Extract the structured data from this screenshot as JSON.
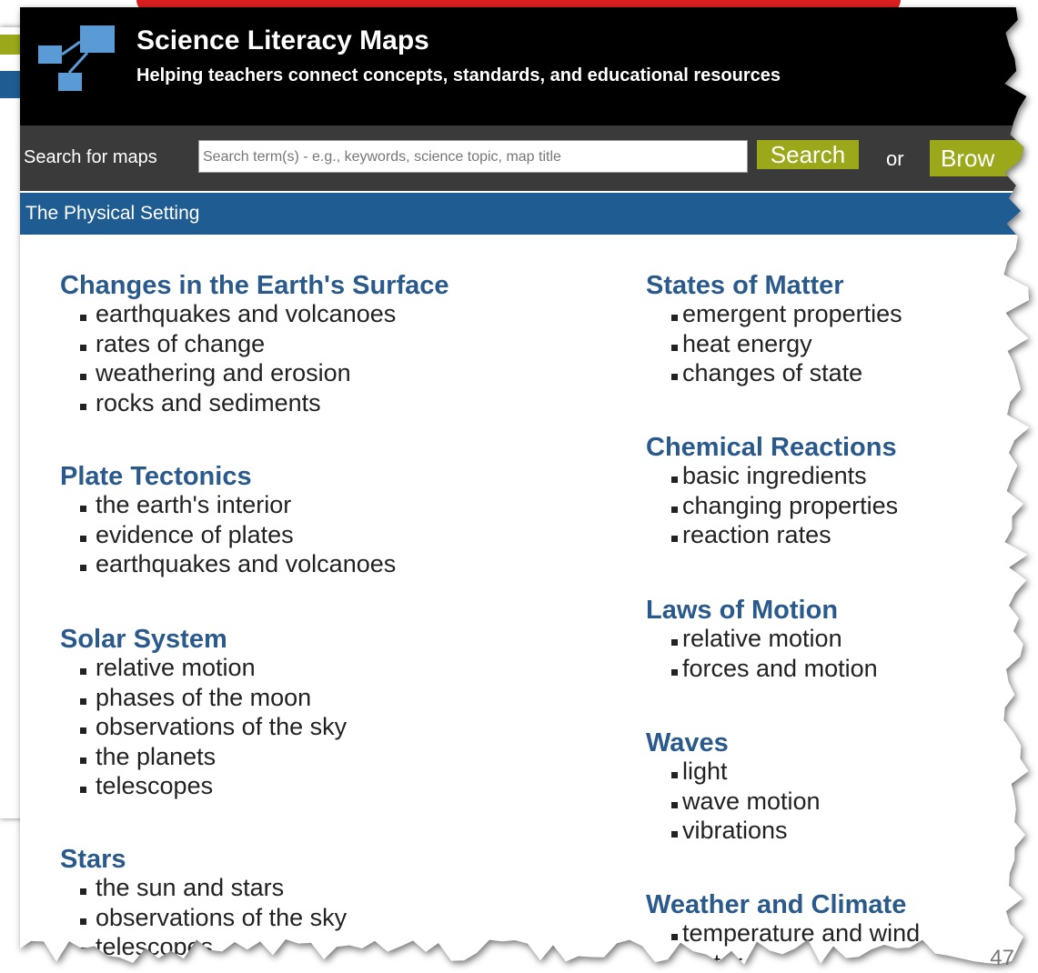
{
  "header": {
    "title": "Science Literacy Maps",
    "subtitle": "Helping teachers connect concepts, standards, and educational resources"
  },
  "search": {
    "label": "Search for maps",
    "placeholder": "Search term(s) - e.g., keywords, science topic, map title",
    "button": "Search",
    "or": "or",
    "browse": "Brow"
  },
  "section": "The Physical Setting",
  "columns": [
    [
      {
        "title": "Changes in the Earth's Surface",
        "items": [
          "earthquakes and volcanoes",
          "rates of change",
          "weathering and erosion",
          "rocks and sediments"
        ]
      },
      {
        "title": "Plate Tectonics",
        "items": [
          "the earth's interior",
          "evidence of plates",
          "earthquakes and volcanoes"
        ]
      },
      {
        "title": "Solar System",
        "items": [
          "relative motion",
          "phases of the moon",
          "observations of the sky",
          "the planets",
          "telescopes"
        ]
      },
      {
        "title": "Stars",
        "items": [
          "the sun and stars",
          "observations of the sky",
          "telescopes"
        ]
      }
    ],
    [
      {
        "title": "States of Matter",
        "items": [
          "emergent properties",
          "heat energy",
          "changes of state"
        ]
      },
      {
        "title": "Chemical Reactions",
        "items": [
          "basic ingredients",
          "changing properties",
          "reaction rates"
        ]
      },
      {
        "title": "Laws of Motion",
        "items": [
          "relative motion",
          "forces and motion"
        ]
      },
      {
        "title": "Waves",
        "items": [
          "light",
          "wave motion",
          "vibrations"
        ]
      },
      {
        "title": "Weather and Climate",
        "items": [
          "temperature and wind",
          "water cycle"
        ]
      }
    ]
  ],
  "page_number": "47"
}
